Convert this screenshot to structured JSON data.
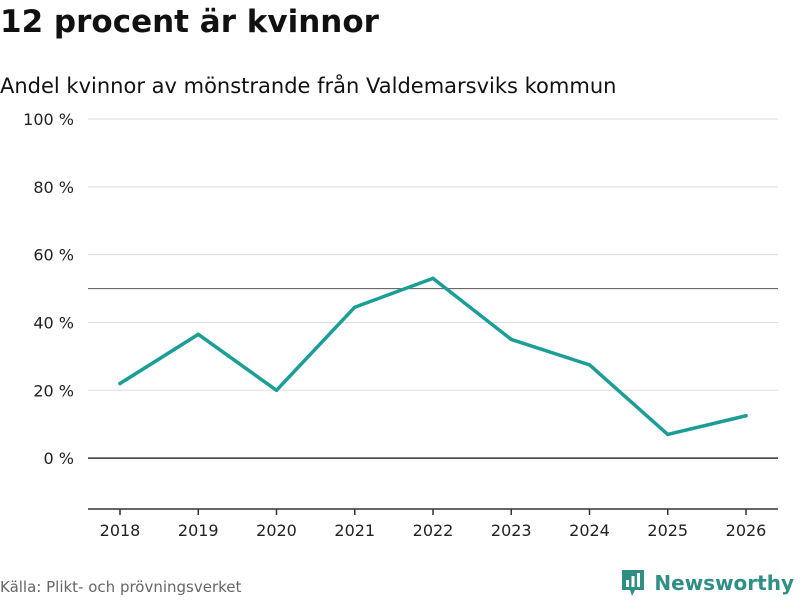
{
  "header": {
    "title": "12 procent är kvinnor",
    "subtitle": "Andel kvinnor av mönstrande från Valdemarsviks kommun"
  },
  "footer": {
    "source": "Källa: Plikt- och prövningsverket",
    "brand": "Newsworthy",
    "brand_color": "#2f8f85"
  },
  "chart_data": {
    "type": "line",
    "title": "12 procent är kvinnor",
    "subtitle": "Andel kvinnor av mönstrande från Valdemarsviks kommun",
    "xlabel": "",
    "ylabel": "",
    "x": [
      "2018",
      "2019",
      "2020",
      "2021",
      "2022",
      "2023",
      "2024",
      "2025",
      "2026"
    ],
    "series": [
      {
        "name": "Andel kvinnor",
        "values": [
          22,
          36.5,
          20,
          44.5,
          53,
          35,
          27.5,
          7,
          12.5
        ],
        "color": "#1a9e96"
      }
    ],
    "ylim": [
      -15,
      100
    ],
    "yticks": [
      0,
      20,
      40,
      60,
      80,
      100
    ],
    "ytick_labels": [
      "0 %",
      "20 %",
      "40 %",
      "60 %",
      "80 %",
      "100 %"
    ],
    "reference_line": 50,
    "grid": true,
    "grid_color": "#dddddd",
    "axis_color": "#333333"
  }
}
